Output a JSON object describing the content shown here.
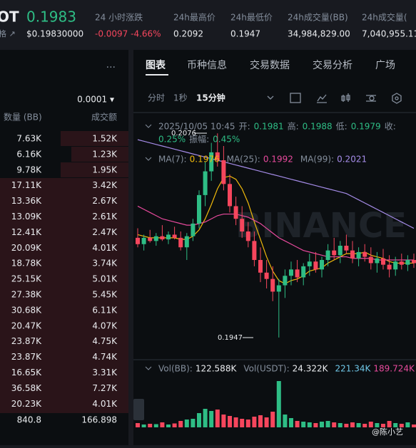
{
  "header": {
    "symbol": "OT",
    "price": "0.1983",
    "price_usd": "$0.19830000",
    "sub": "格 ↗",
    "stats": [
      {
        "label": "24 小时涨跌",
        "value": "-0.0097 -4.66%"
      },
      {
        "label": "24h最高价",
        "value": "0.2092"
      },
      {
        "label": "24h最低价",
        "value": "0.1947"
      },
      {
        "label": "24h成交量(BB)",
        "value": "34,984,829.00"
      },
      {
        "label": "24h成交量(",
        "value": "7,040,955.11"
      }
    ]
  },
  "orderbook": {
    "menu": "···",
    "tick_size": "0.0001 ▾",
    "headers": [
      "数量 (BB)",
      "成交额"
    ],
    "rows": [
      [
        "7.63K",
        "1.52K"
      ],
      [
        "6.16K",
        "1.23K"
      ],
      [
        "9.78K",
        "1.95K"
      ],
      [
        "17.11K",
        "3.42K"
      ],
      [
        "13.36K",
        "2.67K"
      ],
      [
        "13.09K",
        "2.61K"
      ],
      [
        "12.41K",
        "2.47K"
      ],
      [
        "20.09K",
        "4.01K"
      ],
      [
        "18.78K",
        "3.74K"
      ],
      [
        "25.15K",
        "5.01K"
      ],
      [
        "27.38K",
        "5.45K"
      ],
      [
        "30.68K",
        "6.11K"
      ],
      [
        "20.47K",
        "4.07K"
      ],
      [
        "23.87K",
        "4.75K"
      ],
      [
        "23.87K",
        "4.74K"
      ],
      [
        "16.65K",
        "3.31K"
      ],
      [
        "36.58K",
        "7.27K"
      ],
      [
        "20.23K",
        "4.01K"
      ]
    ],
    "total": [
      "840.8",
      "166.898"
    ]
  },
  "tabs": [
    "图表",
    "币种信息",
    "交易数据",
    "交易分析",
    "广场"
  ],
  "intervals": [
    "分时",
    "1秒",
    "15分钟"
  ],
  "watermark_user": "@陈小艺",
  "chart_data": {
    "type": "candlestick",
    "watermark": "BINANCE",
    "legend": [
      "2025/10/05 10:45",
      "开:",
      "0.1981",
      "高:",
      "0.1988",
      "低:",
      "0.1979",
      "收:"
    ],
    "legend2": [
      "0.25%",
      "振幅:",
      "0.45%"
    ],
    "ma_labels": [
      {
        "name": "MA(7):",
        "value": "0.1976",
        "color": "#f0b90b"
      },
      {
        "name": "MA(25):",
        "value": "0.1992",
        "color": "#e84a9d"
      },
      {
        "name": "MA(99):",
        "value": "0.2021",
        "color": "#a58ce8"
      }
    ],
    "high_label": "0.2076",
    "low_label": "0.1947",
    "ylim": [
      0.1933,
      0.2086
    ],
    "up_color": "#2ebd85",
    "down_color": "#f6465d",
    "ohlc": [
      [
        0.201,
        0.2016,
        0.2004,
        0.2006
      ],
      [
        0.2006,
        0.2012,
        0.2002,
        0.201
      ],
      [
        0.201,
        0.2015,
        0.2007,
        0.2008
      ],
      [
        0.2008,
        0.2013,
        0.2005,
        0.2011
      ],
      [
        0.2011,
        0.2018,
        0.2008,
        0.2009
      ],
      [
        0.2009,
        0.2014,
        0.2006,
        0.2012
      ],
      [
        0.2012,
        0.2017,
        0.2009,
        0.201
      ],
      [
        0.201,
        0.2014,
        0.2002,
        0.2004
      ],
      [
        0.2004,
        0.2013,
        0.1996,
        0.2011
      ],
      [
        0.2011,
        0.2022,
        0.2008,
        0.2019
      ],
      [
        0.2019,
        0.204,
        0.2016,
        0.2037
      ],
      [
        0.2037,
        0.2058,
        0.203,
        0.2052
      ],
      [
        0.2052,
        0.207,
        0.2046,
        0.2064
      ],
      [
        0.2064,
        0.2076,
        0.2055,
        0.2059
      ],
      [
        0.2059,
        0.2068,
        0.204,
        0.2044
      ],
      [
        0.2044,
        0.205,
        0.2026,
        0.203
      ],
      [
        0.203,
        0.2036,
        0.2018,
        0.2022
      ],
      [
        0.2022,
        0.203,
        0.201,
        0.2014
      ],
      [
        0.2014,
        0.202,
        0.2004,
        0.2008
      ],
      [
        0.2008,
        0.2014,
        0.1992,
        0.1996
      ],
      [
        0.1996,
        0.2004,
        0.1982,
        0.1988
      ],
      [
        0.1988,
        0.1996,
        0.1978,
        0.1984
      ],
      [
        0.1984,
        0.1992,
        0.197,
        0.1976
      ],
      [
        0.1976,
        0.1984,
        0.1947,
        0.198
      ],
      [
        0.198,
        0.199,
        0.1972,
        0.1986
      ],
      [
        0.1986,
        0.1995,
        0.198,
        0.199
      ],
      [
        0.199,
        0.1996,
        0.1982,
        0.1985
      ],
      [
        0.1985,
        0.1994,
        0.198,
        0.1992
      ],
      [
        0.1992,
        0.2,
        0.1986,
        0.1995
      ],
      [
        0.1995,
        0.2001,
        0.1988,
        0.199
      ],
      [
        0.199,
        0.1998,
        0.1985,
        0.1996
      ],
      [
        0.1996,
        0.2006,
        0.1992,
        0.2002
      ],
      [
        0.2002,
        0.201,
        0.1996,
        0.1999
      ],
      [
        0.1999,
        0.2008,
        0.1994,
        0.2005
      ],
      [
        0.2005,
        0.2012,
        0.2,
        0.2002
      ],
      [
        0.2002,
        0.2008,
        0.1994,
        0.1997
      ],
      [
        0.1997,
        0.2004,
        0.1992,
        0.2001
      ],
      [
        0.2001,
        0.2006,
        0.1995,
        0.1998
      ],
      [
        0.1998,
        0.2004,
        0.199,
        0.1994
      ],
      [
        0.1994,
        0.2001,
        0.1988,
        0.1997
      ],
      [
        0.1997,
        0.2003,
        0.199,
        0.1993
      ],
      [
        0.1993,
        0.1999,
        0.1985,
        0.199
      ],
      [
        0.199,
        0.1998,
        0.1986,
        0.1995
      ],
      [
        0.1995,
        0.2,
        0.199,
        0.1993
      ],
      [
        0.1993,
        0.1999,
        0.1989,
        0.1996
      ],
      [
        0.1996,
        0.2,
        0.1991,
        0.1994
      ]
    ],
    "ma": [
      {
        "values": [
          0.2012,
          0.2011,
          0.201,
          0.201,
          0.201,
          0.201,
          0.201,
          0.2009,
          0.2009,
          0.2011,
          0.2015,
          0.2022,
          0.2031,
          0.2041,
          0.2048,
          0.2049,
          0.2047,
          0.2041,
          0.2032,
          0.202,
          0.2009,
          0.1998,
          0.1989,
          0.1983,
          0.1981,
          0.1983,
          0.1984,
          0.1986,
          0.1989,
          0.199,
          0.1991,
          0.1994,
          0.1996,
          0.1998,
          0.2,
          0.2,
          0.2,
          0.2001,
          0.1999,
          0.1998,
          0.1997,
          0.1995,
          0.1994,
          0.1994,
          0.1994,
          0.1994
        ]
      },
      {
        "values": [
          0.203,
          0.2028,
          0.2026,
          0.2024,
          0.2022,
          0.2021,
          0.202,
          0.2019,
          0.2018,
          0.2018,
          0.2019,
          0.202,
          0.2022,
          0.2024,
          0.2025,
          0.2025,
          0.2025,
          0.2024,
          0.2023,
          0.2021,
          0.2019,
          0.2016,
          0.2013,
          0.201,
          0.2008,
          0.2006,
          0.2004,
          0.2002,
          0.2001,
          0.2,
          0.1999,
          0.1998,
          0.1998,
          0.1998,
          0.1998,
          0.1997,
          0.1997,
          0.1997,
          0.1997,
          0.1996,
          0.1996,
          0.1996,
          0.1996,
          0.1996,
          0.1996,
          0.1996
        ]
      },
      {
        "values": [
          0.2072,
          0.2071,
          0.207,
          0.2069,
          0.2068,
          0.2067,
          0.2066,
          0.2065,
          0.2064,
          0.2063,
          0.2062,
          0.2061,
          0.206,
          0.2059,
          0.2058,
          0.2057,
          0.2056,
          0.2055,
          0.2054,
          0.2053,
          0.2052,
          0.2051,
          0.205,
          0.2049,
          0.2048,
          0.2047,
          0.2046,
          0.2045,
          0.2044,
          0.2043,
          0.2042,
          0.2041,
          0.204,
          0.2039,
          0.2038,
          0.2036,
          0.2034,
          0.2032,
          0.203,
          0.2028,
          0.2026,
          0.2024,
          0.2022,
          0.202,
          0.2018,
          0.2016
        ]
      }
    ],
    "vol_labels": [
      {
        "text": "Vol(BB):",
        "color": "#848e9c"
      },
      {
        "text": "122.588K",
        "color": "#eaecef"
      },
      {
        "text": "Vol(USDT):",
        "color": "#848e9c"
      },
      {
        "text": "24.322K",
        "color": "#eaecef"
      },
      {
        "text": "221.34K",
        "color": "#6fc7e8"
      },
      {
        "text": "189.724K",
        "color": "#e84a9d"
      }
    ],
    "volume_ylim": [
      0,
      700
    ],
    "volume": [
      60,
      40,
      50,
      45,
      70,
      40,
      55,
      90,
      110,
      120,
      200,
      260,
      230,
      250,
      180,
      160,
      140,
      120,
      110,
      150,
      170,
      140,
      220,
      650,
      180,
      130,
      90,
      80,
      70,
      60,
      80,
      90,
      70,
      60,
      50,
      70,
      60,
      50,
      80,
      60,
      50,
      90,
      60,
      50,
      70,
      40
    ]
  }
}
